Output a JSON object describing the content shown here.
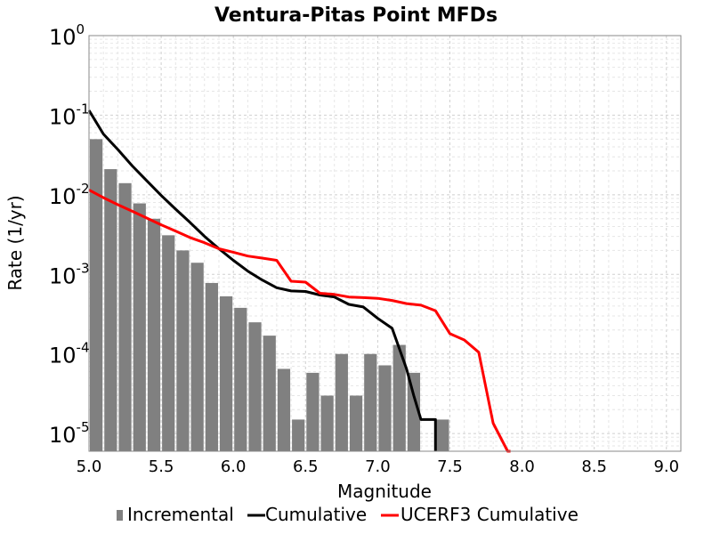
{
  "chart_data": {
    "type": "bar",
    "title": "Ventura-Pitas Point MFDs",
    "xlabel": "Magnitude",
    "ylabel": "Rate (1/yr)",
    "xlim": [
      5.0,
      9.1
    ],
    "ylim": [
      6e-06,
      1
    ],
    "y_scale": "log",
    "grid": true,
    "legend_placement": "bottom",
    "x_ticks": [
      "5.0",
      "5.5",
      "6.0",
      "6.5",
      "7.0",
      "7.5",
      "8.0",
      "8.5",
      "9.0"
    ],
    "y_ticks": [
      {
        "base": "10",
        "exp": "0"
      },
      {
        "base": "10",
        "exp": "-1"
      },
      {
        "base": "10",
        "exp": "-2"
      },
      {
        "base": "10",
        "exp": "-3"
      },
      {
        "base": "10",
        "exp": "-4"
      },
      {
        "base": "10",
        "exp": "-5"
      }
    ],
    "series": [
      {
        "name": "Incremental",
        "kind": "bar",
        "color": "#808080",
        "x": [
          5.05,
          5.15,
          5.25,
          5.35,
          5.45,
          5.55,
          5.65,
          5.75,
          5.85,
          5.95,
          6.05,
          6.15,
          6.25,
          6.35,
          6.45,
          6.55,
          6.65,
          6.75,
          6.85,
          6.95,
          7.05,
          7.15,
          7.25,
          7.35,
          7.45
        ],
        "values": [
          0.05,
          0.021,
          0.014,
          0.0078,
          0.005,
          0.0031,
          0.002,
          0.0014,
          0.00078,
          0.00053,
          0.00038,
          0.00025,
          0.00017,
          6.5e-05,
          1.5e-05,
          5.8e-05,
          3e-05,
          0.0001,
          3e-05,
          0.0001,
          7.2e-05,
          0.00013,
          5.8e-05,
          0.0,
          1.5e-05
        ]
      },
      {
        "name": "Cumulative",
        "kind": "line",
        "color": "#000000",
        "x": [
          5.0,
          5.1,
          5.2,
          5.3,
          5.4,
          5.5,
          5.6,
          5.7,
          5.8,
          5.9,
          6.0,
          6.1,
          6.2,
          6.3,
          6.4,
          6.5,
          6.6,
          6.7,
          6.8,
          6.9,
          7.0,
          7.1,
          7.2,
          7.25,
          7.3,
          7.35,
          7.4,
          7.4
        ],
        "values": [
          0.115,
          0.058,
          0.037,
          0.023,
          0.015,
          0.0098,
          0.0066,
          0.0045,
          0.003,
          0.0021,
          0.0015,
          0.0011,
          0.00085,
          0.00068,
          0.00062,
          0.00061,
          0.00055,
          0.00052,
          0.00042,
          0.00039,
          0.00028,
          0.00021,
          6.5e-05,
          3e-05,
          1.5e-05,
          1.5e-05,
          1.5e-05,
          5e-06
        ]
      },
      {
        "name": "UCERF3 Cumulative",
        "kind": "line",
        "color": "#ff0000",
        "x": [
          5.0,
          5.1,
          5.2,
          5.3,
          5.4,
          5.5,
          5.6,
          5.7,
          5.8,
          5.9,
          6.0,
          6.1,
          6.2,
          6.3,
          6.4,
          6.5,
          6.6,
          6.7,
          6.8,
          6.9,
          7.0,
          7.1,
          7.2,
          7.3,
          7.4,
          7.5,
          7.6,
          7.7,
          7.8,
          7.9,
          7.92
        ],
        "values": [
          0.0115,
          0.0092,
          0.0075,
          0.0062,
          0.0051,
          0.0042,
          0.0035,
          0.0029,
          0.0025,
          0.0021,
          0.0019,
          0.0017,
          0.0016,
          0.0015,
          0.00082,
          0.0008,
          0.00058,
          0.00056,
          0.00052,
          0.00051,
          0.0005,
          0.00047,
          0.00043,
          0.00041,
          0.00035,
          0.00018,
          0.00015,
          0.000105,
          1.35e-05,
          5e-06,
          5e-06
        ]
      }
    ]
  }
}
